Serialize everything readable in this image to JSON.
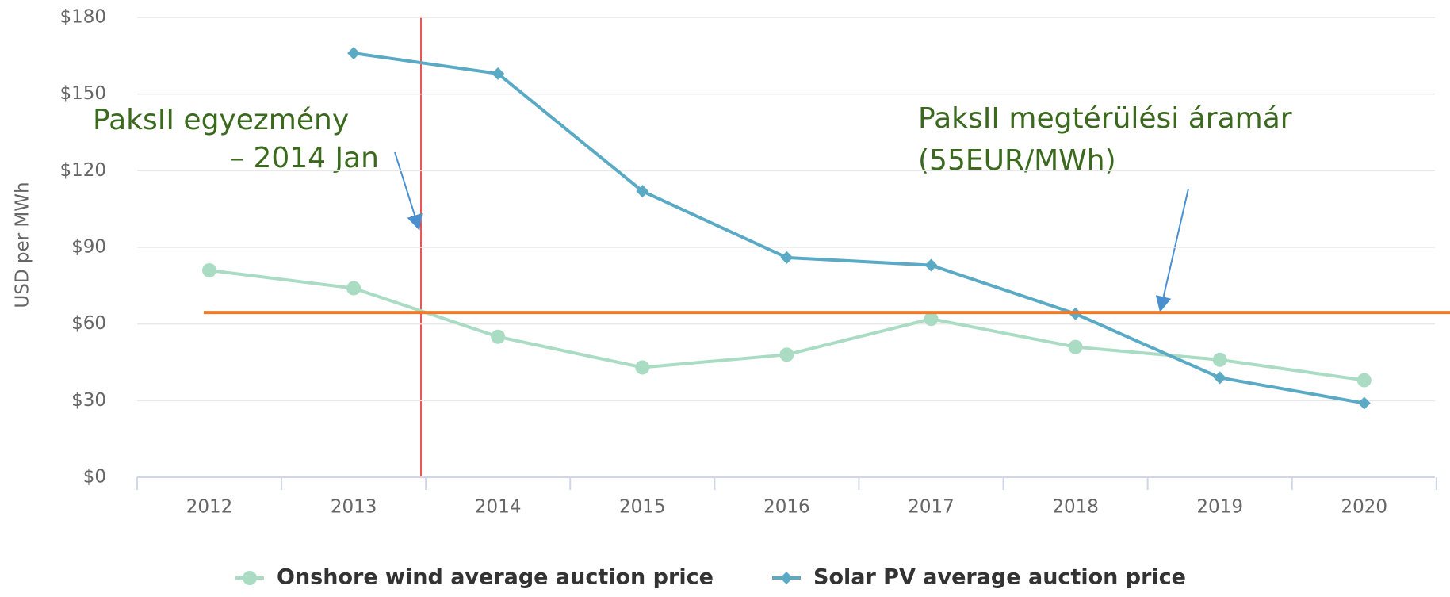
{
  "chart_data": {
    "type": "line",
    "y_label": "USD per MWh",
    "categories": [
      "2012",
      "2013",
      "2014",
      "2015",
      "2016",
      "2017",
      "2018",
      "2019",
      "2020"
    ],
    "series": [
      {
        "name": "Onshore wind average auction price",
        "color": "#a9dcc3",
        "marker": "circle",
        "values": [
          81,
          74,
          55,
          43,
          48,
          62,
          51,
          46,
          38
        ]
      },
      {
        "name": "Solar PV average auction price",
        "color": "#5aaac6",
        "marker": "diamond",
        "values": [
          null,
          166,
          158,
          112,
          86,
          83,
          64,
          39,
          29
        ]
      }
    ],
    "ylim": [
      0,
      180
    ],
    "yticks": [
      {
        "value": 0,
        "label": "$0"
      },
      {
        "value": 30,
        "label": "$30"
      },
      {
        "value": 60,
        "label": "$60"
      },
      {
        "value": 90,
        "label": "$90"
      },
      {
        "value": 120,
        "label": "$120"
      },
      {
        "value": 150,
        "label": "$150"
      },
      {
        "value": 180,
        "label": "$180"
      }
    ],
    "grid": true,
    "legend": "bottom",
    "reference_line": {
      "value": 64.5,
      "color": "#f07a2a"
    },
    "annotations": [
      "PaksII egyezmény",
      "– 2014 Jan",
      "PaksII megtérülési áramár",
      "(55EUR/MWh)"
    ]
  }
}
